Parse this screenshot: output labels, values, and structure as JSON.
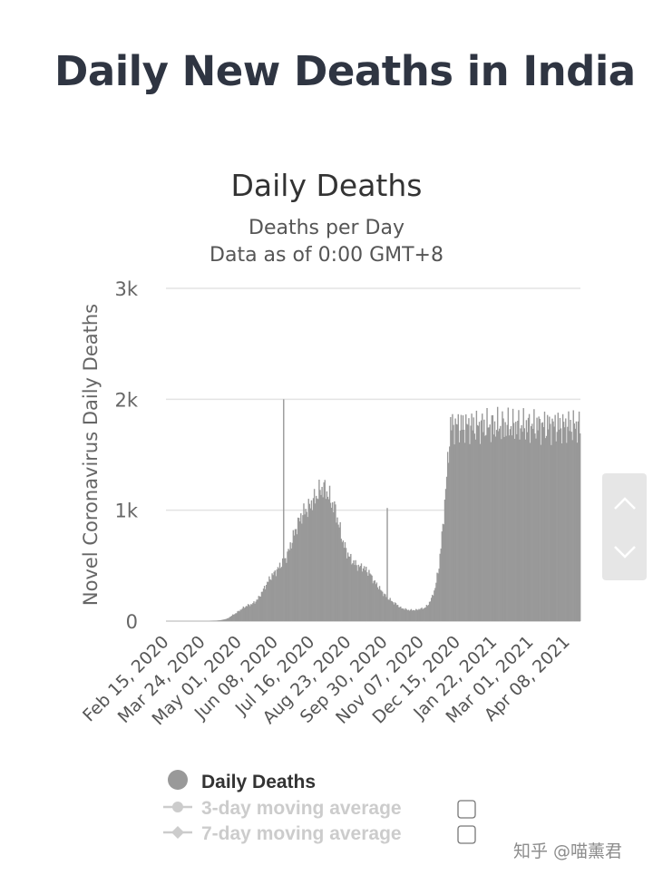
{
  "page": {
    "title": "Daily New Deaths in India"
  },
  "chart_data": {
    "type": "bar",
    "title": "Daily Deaths",
    "subtitle": [
      "Deaths per Day",
      "Data as of 0:00 GMT+8"
    ],
    "ylabel": "Novel Coronavirus Daily Deaths",
    "xlabel": "",
    "ylim": [
      0,
      3000
    ],
    "yticks": [
      {
        "value": 0,
        "label": "0"
      },
      {
        "value": 1000,
        "label": "1k"
      },
      {
        "value": 2000,
        "label": "2k"
      },
      {
        "value": 3000,
        "label": "3k"
      }
    ],
    "xticks": [
      "Feb 15, 2020",
      "Mar 24, 2020",
      "May 01, 2020",
      "Jun 08, 2020",
      "Jul 16, 2020",
      "Aug 23, 2020",
      "Sep 30, 2020",
      "Nov 07, 2020",
      "Dec 15, 2020",
      "Jan 22, 2021",
      "Mar 01, 2021",
      "Apr 08, 2021"
    ],
    "series": [
      {
        "name": "Daily Deaths",
        "color": "#999999",
        "start_date": "2020-02-15",
        "sample_every_days": 4,
        "values": [
          0,
          0,
          0,
          0,
          0,
          0,
          0,
          0,
          0,
          0,
          0,
          0,
          2,
          4,
          8,
          15,
          25,
          50,
          70,
          95,
          120,
          140,
          150,
          170,
          210,
          270,
          330,
          390,
          430,
          470,
          520,
          560,
          650,
          760,
          860,
          940,
          990,
          1020,
          1080,
          1120,
          1180,
          1200,
          1150,
          1070,
          1000,
          850,
          710,
          620,
          560,
          520,
          490,
          490,
          460,
          430,
          360,
          320,
          270,
          230,
          200,
          170,
          150,
          120,
          110,
          100,
          100,
          100,
          110,
          115,
          140,
          200,
          300,
          500,
          850,
          1300,
          1760
        ],
        "spikes": [
          {
            "date": "2020-06-16",
            "value": 2000
          },
          {
            "date": "2020-07-22",
            "value": 1100
          },
          {
            "date": "2020-10-02",
            "value": 1020
          }
        ]
      }
    ],
    "legend": {
      "position": "bottom",
      "items": [
        {
          "label": "Daily Deaths",
          "active": true,
          "marker": "circle",
          "color": "#999999"
        },
        {
          "label": "3-day moving average",
          "active": false,
          "marker": "circle-line",
          "color": "#cccccc"
        },
        {
          "label": "7-day moving average",
          "active": false,
          "marker": "diamond-line",
          "color": "#cccccc"
        }
      ]
    },
    "grid": true
  },
  "scroll_widget": {
    "up_icon": "chevron-up-icon",
    "down_icon": "chevron-down-icon",
    "color": "#e6e6e6"
  },
  "watermark": "知乎 @喵薰君"
}
